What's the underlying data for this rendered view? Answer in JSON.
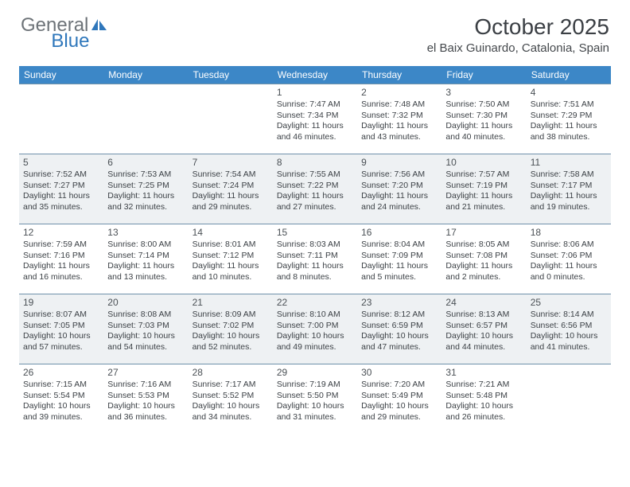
{
  "brand": {
    "part1": "General",
    "part2": "Blue"
  },
  "title": "October 2025",
  "location": "el Baix Guinardo, Catalonia, Spain",
  "colors": {
    "header_bg": "#3c87c7",
    "header_text": "#ffffff",
    "alt_row_bg": "#eef1f3",
    "border": "#6f91ab",
    "brand_gray": "#6d7378",
    "brand_blue": "#2f77bb",
    "text": "#3c4146"
  },
  "day_headers": [
    "Sunday",
    "Monday",
    "Tuesday",
    "Wednesday",
    "Thursday",
    "Friday",
    "Saturday"
  ],
  "weeks": [
    [
      null,
      null,
      null,
      {
        "n": "1",
        "sr": "7:47 AM",
        "ss": "7:34 PM",
        "dl": "11 hours and 46 minutes."
      },
      {
        "n": "2",
        "sr": "7:48 AM",
        "ss": "7:32 PM",
        "dl": "11 hours and 43 minutes."
      },
      {
        "n": "3",
        "sr": "7:50 AM",
        "ss": "7:30 PM",
        "dl": "11 hours and 40 minutes."
      },
      {
        "n": "4",
        "sr": "7:51 AM",
        "ss": "7:29 PM",
        "dl": "11 hours and 38 minutes."
      }
    ],
    [
      {
        "n": "5",
        "sr": "7:52 AM",
        "ss": "7:27 PM",
        "dl": "11 hours and 35 minutes."
      },
      {
        "n": "6",
        "sr": "7:53 AM",
        "ss": "7:25 PM",
        "dl": "11 hours and 32 minutes."
      },
      {
        "n": "7",
        "sr": "7:54 AM",
        "ss": "7:24 PM",
        "dl": "11 hours and 29 minutes."
      },
      {
        "n": "8",
        "sr": "7:55 AM",
        "ss": "7:22 PM",
        "dl": "11 hours and 27 minutes."
      },
      {
        "n": "9",
        "sr": "7:56 AM",
        "ss": "7:20 PM",
        "dl": "11 hours and 24 minutes."
      },
      {
        "n": "10",
        "sr": "7:57 AM",
        "ss": "7:19 PM",
        "dl": "11 hours and 21 minutes."
      },
      {
        "n": "11",
        "sr": "7:58 AM",
        "ss": "7:17 PM",
        "dl": "11 hours and 19 minutes."
      }
    ],
    [
      {
        "n": "12",
        "sr": "7:59 AM",
        "ss": "7:16 PM",
        "dl": "11 hours and 16 minutes."
      },
      {
        "n": "13",
        "sr": "8:00 AM",
        "ss": "7:14 PM",
        "dl": "11 hours and 13 minutes."
      },
      {
        "n": "14",
        "sr": "8:01 AM",
        "ss": "7:12 PM",
        "dl": "11 hours and 10 minutes."
      },
      {
        "n": "15",
        "sr": "8:03 AM",
        "ss": "7:11 PM",
        "dl": "11 hours and 8 minutes."
      },
      {
        "n": "16",
        "sr": "8:04 AM",
        "ss": "7:09 PM",
        "dl": "11 hours and 5 minutes."
      },
      {
        "n": "17",
        "sr": "8:05 AM",
        "ss": "7:08 PM",
        "dl": "11 hours and 2 minutes."
      },
      {
        "n": "18",
        "sr": "8:06 AM",
        "ss": "7:06 PM",
        "dl": "11 hours and 0 minutes."
      }
    ],
    [
      {
        "n": "19",
        "sr": "8:07 AM",
        "ss": "7:05 PM",
        "dl": "10 hours and 57 minutes."
      },
      {
        "n": "20",
        "sr": "8:08 AM",
        "ss": "7:03 PM",
        "dl": "10 hours and 54 minutes."
      },
      {
        "n": "21",
        "sr": "8:09 AM",
        "ss": "7:02 PM",
        "dl": "10 hours and 52 minutes."
      },
      {
        "n": "22",
        "sr": "8:10 AM",
        "ss": "7:00 PM",
        "dl": "10 hours and 49 minutes."
      },
      {
        "n": "23",
        "sr": "8:12 AM",
        "ss": "6:59 PM",
        "dl": "10 hours and 47 minutes."
      },
      {
        "n": "24",
        "sr": "8:13 AM",
        "ss": "6:57 PM",
        "dl": "10 hours and 44 minutes."
      },
      {
        "n": "25",
        "sr": "8:14 AM",
        "ss": "6:56 PM",
        "dl": "10 hours and 41 minutes."
      }
    ],
    [
      {
        "n": "26",
        "sr": "7:15 AM",
        "ss": "5:54 PM",
        "dl": "10 hours and 39 minutes."
      },
      {
        "n": "27",
        "sr": "7:16 AM",
        "ss": "5:53 PM",
        "dl": "10 hours and 36 minutes."
      },
      {
        "n": "28",
        "sr": "7:17 AM",
        "ss": "5:52 PM",
        "dl": "10 hours and 34 minutes."
      },
      {
        "n": "29",
        "sr": "7:19 AM",
        "ss": "5:50 PM",
        "dl": "10 hours and 31 minutes."
      },
      {
        "n": "30",
        "sr": "7:20 AM",
        "ss": "5:49 PM",
        "dl": "10 hours and 29 minutes."
      },
      {
        "n": "31",
        "sr": "7:21 AM",
        "ss": "5:48 PM",
        "dl": "10 hours and 26 minutes."
      },
      null
    ]
  ],
  "labels": {
    "sunrise": "Sunrise:",
    "sunset": "Sunset:",
    "daylight": "Daylight:"
  }
}
